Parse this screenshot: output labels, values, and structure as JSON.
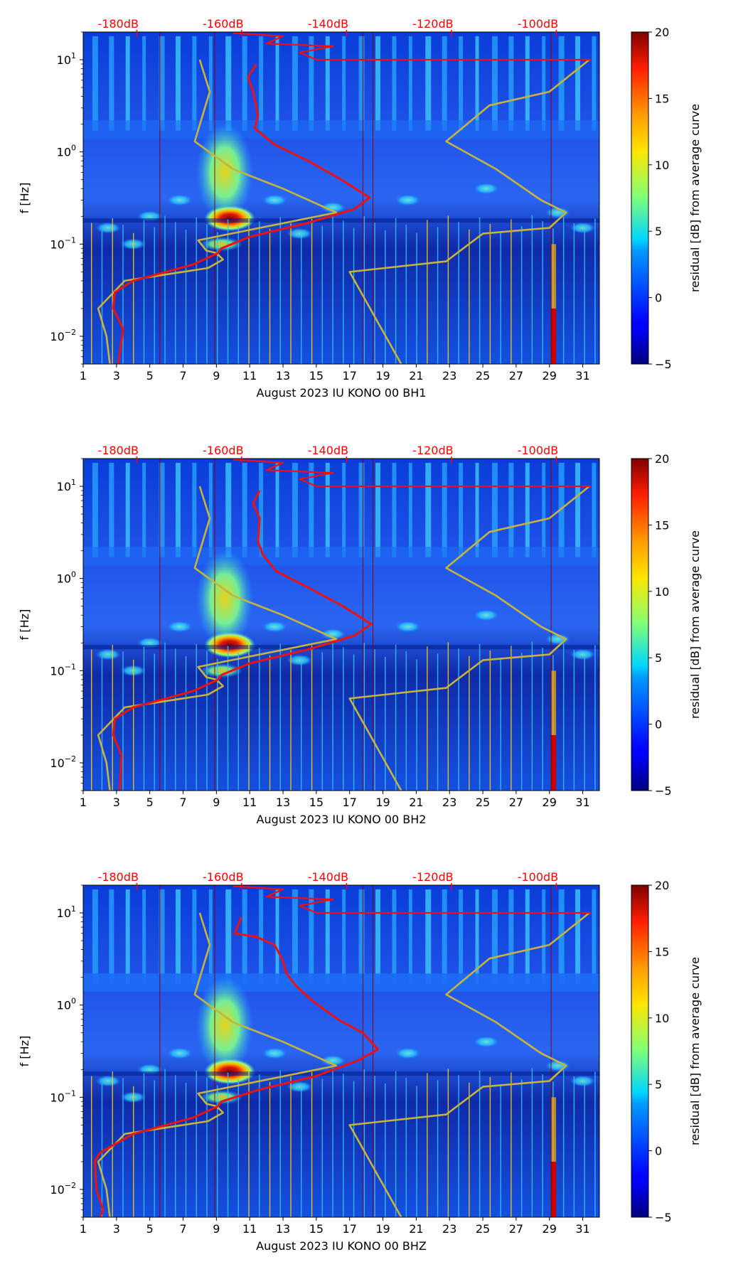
{
  "figure": {
    "colors": {
      "top_scale": "#ff0000",
      "noise_model": "#c8b43a",
      "psd_curve": "#ee1111",
      "axis": "#000000"
    }
  },
  "chart_data": [
    {
      "type": "heatmap",
      "title": "",
      "xlabel": "August 2023 IU KONO 00 BH1",
      "ylabel": "f [Hz]",
      "x_ticks": [
        "1",
        "3",
        "5",
        "7",
        "9",
        "11",
        "13",
        "15",
        "17",
        "19",
        "21",
        "23",
        "25",
        "27",
        "29",
        "31"
      ],
      "x_range": [
        1,
        32
      ],
      "y_range": [
        0.005,
        20
      ],
      "y_scale": "log",
      "y_ticks": [
        {
          "label": "10",
          "exp": "1",
          "value": 10
        },
        {
          "label": "10",
          "exp": "0",
          "value": 1
        },
        {
          "label": "10",
          "exp": "−1",
          "value": 0.1
        },
        {
          "label": "10",
          "exp": "−2",
          "value": 0.01
        }
      ],
      "top_ticks": [
        {
          "label": "-180dB",
          "day": 4.3
        },
        {
          "label": "-160dB",
          "day": 10.6
        },
        {
          "label": "-140dB",
          "day": 16.9
        },
        {
          "label": "-120dB",
          "day": 23.2
        },
        {
          "label": "-100dB",
          "day": 29.5
        }
      ],
      "colorbar": {
        "label": "residual [dB] from average curve",
        "min": -5,
        "max": 20,
        "ticks": [
          "20",
          "15",
          "10",
          "5",
          "0",
          "−5"
        ],
        "tick_values": [
          20,
          15,
          10,
          5,
          0,
          -5
        ]
      },
      "series": [
        {
          "name": "noise model bounds",
          "points": [
            [
              8,
              10
            ],
            [
              8.6,
              4.5
            ],
            [
              7.7,
              1.3
            ],
            [
              10,
              0.65
            ],
            [
              13,
              0.4
            ],
            [
              16.2,
              0.22
            ],
            [
              7.9,
              0.11
            ],
            [
              8.4,
              0.085
            ],
            [
              9,
              0.08
            ],
            [
              9.4,
              0.068
            ],
            [
              8.5,
              0.055
            ],
            [
              3.5,
              0.04
            ],
            [
              1.9,
              0.02
            ],
            [
              2.4,
              0.01
            ],
            [
              2.6,
              0.005
            ]
          ]
        },
        {
          "name": "noise model upper",
          "points": [
            [
              20.1,
              0.005
            ],
            [
              17,
              0.05
            ],
            [
              22.8,
              0.065
            ],
            [
              25,
              0.13
            ],
            [
              29,
              0.15
            ],
            [
              30,
              0.22
            ],
            [
              28.5,
              0.3
            ],
            [
              25.8,
              0.65
            ],
            [
              22.8,
              1.3
            ],
            [
              25.4,
              3.2
            ],
            [
              29,
              4.5
            ],
            [
              31.4,
              10
            ]
          ]
        },
        {
          "name": "psd level",
          "points": [
            [
              31.5,
              10
            ],
            [
              15,
              10
            ],
            [
              14,
              12
            ],
            [
              16,
              14
            ],
            [
              12,
              15
            ],
            [
              13,
              18
            ],
            [
              10,
              19.5
            ]
          ]
        },
        {
          "name": "psd median",
          "points": [
            [
              11.4,
              9
            ],
            [
              10.9,
              6.5
            ],
            [
              11.2,
              4.5
            ],
            [
              11.5,
              2.5
            ],
            [
              11.3,
              1.8
            ],
            [
              12.5,
              1.2
            ],
            [
              14.5,
              0.8
            ],
            [
              16.5,
              0.5
            ],
            [
              18.2,
              0.32
            ],
            [
              17.3,
              0.24
            ],
            [
              14.5,
              0.17
            ],
            [
              11,
              0.12
            ],
            [
              9.3,
              0.09
            ],
            [
              9.1,
              0.08
            ],
            [
              7.6,
              0.06
            ],
            [
              4,
              0.04
            ],
            [
              2.9,
              0.03
            ],
            [
              2.8,
              0.02
            ],
            [
              3.4,
              0.012
            ],
            [
              3.1,
              0.005
            ]
          ]
        }
      ]
    },
    {
      "type": "heatmap",
      "title": "",
      "xlabel": "August 2023 IU KONO 00 BH2",
      "ylabel": "f [Hz]",
      "x_ticks": [
        "1",
        "3",
        "5",
        "7",
        "9",
        "11",
        "13",
        "15",
        "17",
        "19",
        "21",
        "23",
        "25",
        "27",
        "29",
        "31"
      ],
      "x_range": [
        1,
        32
      ],
      "y_range": [
        0.005,
        20
      ],
      "y_scale": "log",
      "y_ticks": [
        {
          "label": "10",
          "exp": "1",
          "value": 10
        },
        {
          "label": "10",
          "exp": "0",
          "value": 1
        },
        {
          "label": "10",
          "exp": "−1",
          "value": 0.1
        },
        {
          "label": "10",
          "exp": "−2",
          "value": 0.01
        }
      ],
      "top_ticks": [
        {
          "label": "-180dB",
          "day": 4.3
        },
        {
          "label": "-160dB",
          "day": 10.6
        },
        {
          "label": "-140dB",
          "day": 16.9
        },
        {
          "label": "-120dB",
          "day": 23.2
        },
        {
          "label": "-100dB",
          "day": 29.5
        }
      ],
      "colorbar": {
        "label": "residual [dB] from average curve",
        "min": -5,
        "max": 20,
        "ticks": [
          "20",
          "15",
          "10",
          "5",
          "0",
          "−5"
        ],
        "tick_values": [
          20,
          15,
          10,
          5,
          0,
          -5
        ]
      },
      "series": [
        {
          "name": "noise model bounds",
          "points": [
            [
              8,
              10
            ],
            [
              8.6,
              4.5
            ],
            [
              7.7,
              1.3
            ],
            [
              10,
              0.65
            ],
            [
              13,
              0.4
            ],
            [
              16.2,
              0.22
            ],
            [
              7.9,
              0.11
            ],
            [
              8.4,
              0.085
            ],
            [
              9,
              0.08
            ],
            [
              9.4,
              0.068
            ],
            [
              8.5,
              0.055
            ],
            [
              3.5,
              0.04
            ],
            [
              1.9,
              0.02
            ],
            [
              2.4,
              0.01
            ],
            [
              2.6,
              0.005
            ]
          ]
        },
        {
          "name": "noise model upper",
          "points": [
            [
              20.1,
              0.005
            ],
            [
              17,
              0.05
            ],
            [
              22.8,
              0.065
            ],
            [
              25,
              0.13
            ],
            [
              29,
              0.15
            ],
            [
              30,
              0.22
            ],
            [
              28.5,
              0.3
            ],
            [
              25.8,
              0.65
            ],
            [
              22.8,
              1.3
            ],
            [
              25.4,
              3.2
            ],
            [
              29,
              4.5
            ],
            [
              31.4,
              10
            ]
          ]
        },
        {
          "name": "psd level",
          "points": [
            [
              31.5,
              10
            ],
            [
              15,
              10
            ],
            [
              14,
              12
            ],
            [
              16,
              14
            ],
            [
              12,
              15
            ],
            [
              13,
              18
            ],
            [
              10,
              19.5
            ]
          ]
        },
        {
          "name": "psd median",
          "points": [
            [
              11.6,
              9
            ],
            [
              11.2,
              6.5
            ],
            [
              11.6,
              4.5
            ],
            [
              11.5,
              2.5
            ],
            [
              11.8,
              1.8
            ],
            [
              12.6,
              1.2
            ],
            [
              14.5,
              0.8
            ],
            [
              16.6,
              0.5
            ],
            [
              18.3,
              0.32
            ],
            [
              17.3,
              0.24
            ],
            [
              14.5,
              0.17
            ],
            [
              11,
              0.12
            ],
            [
              9.3,
              0.09
            ],
            [
              9.1,
              0.08
            ],
            [
              7.6,
              0.06
            ],
            [
              4,
              0.04
            ],
            [
              2.9,
              0.03
            ],
            [
              2.8,
              0.02
            ],
            [
              3.3,
              0.012
            ],
            [
              3.2,
              0.005
            ]
          ]
        }
      ]
    },
    {
      "type": "heatmap",
      "title": "",
      "xlabel": "August 2023 IU KONO 00 BHZ",
      "ylabel": "f [Hz]",
      "x_ticks": [
        "1",
        "3",
        "5",
        "7",
        "9",
        "11",
        "13",
        "15",
        "17",
        "19",
        "21",
        "23",
        "25",
        "27",
        "29",
        "31"
      ],
      "x_range": [
        1,
        32
      ],
      "y_range": [
        0.005,
        20
      ],
      "y_scale": "log",
      "y_ticks": [
        {
          "label": "10",
          "exp": "1",
          "value": 10
        },
        {
          "label": "10",
          "exp": "0",
          "value": 1
        },
        {
          "label": "10",
          "exp": "−1",
          "value": 0.1
        },
        {
          "label": "10",
          "exp": "−2",
          "value": 0.01
        }
      ],
      "top_ticks": [
        {
          "label": "-180dB",
          "day": 4.3
        },
        {
          "label": "-160dB",
          "day": 10.6
        },
        {
          "label": "-140dB",
          "day": 16.9
        },
        {
          "label": "-120dB",
          "day": 23.2
        },
        {
          "label": "-100dB",
          "day": 29.5
        }
      ],
      "colorbar": {
        "label": "residual [dB] from average curve",
        "min": -5,
        "max": 20,
        "ticks": [
          "20",
          "15",
          "10",
          "5",
          "0",
          "−5"
        ],
        "tick_values": [
          20,
          15,
          10,
          5,
          0,
          -5
        ]
      },
      "series": [
        {
          "name": "noise model bounds",
          "points": [
            [
              8,
              10
            ],
            [
              8.6,
              4.5
            ],
            [
              7.7,
              1.3
            ],
            [
              10,
              0.65
            ],
            [
              13,
              0.4
            ],
            [
              16.2,
              0.22
            ],
            [
              7.9,
              0.11
            ],
            [
              8.4,
              0.085
            ],
            [
              9,
              0.08
            ],
            [
              9.4,
              0.068
            ],
            [
              8.5,
              0.055
            ],
            [
              3.5,
              0.04
            ],
            [
              1.9,
              0.02
            ],
            [
              2.4,
              0.01
            ],
            [
              2.6,
              0.005
            ]
          ]
        },
        {
          "name": "noise model upper",
          "points": [
            [
              20.1,
              0.005
            ],
            [
              17,
              0.05
            ],
            [
              22.8,
              0.065
            ],
            [
              25,
              0.13
            ],
            [
              29,
              0.15
            ],
            [
              30,
              0.22
            ],
            [
              28.5,
              0.3
            ],
            [
              25.8,
              0.65
            ],
            [
              22.8,
              1.3
            ],
            [
              25.4,
              3.2
            ],
            [
              29,
              4.5
            ],
            [
              31.4,
              10
            ]
          ]
        },
        {
          "name": "psd level",
          "points": [
            [
              31.5,
              10
            ],
            [
              15,
              10
            ],
            [
              14,
              12
            ],
            [
              16,
              14
            ],
            [
              12,
              15
            ],
            [
              13,
              18
            ],
            [
              10,
              19.5
            ]
          ]
        },
        {
          "name": "psd median",
          "points": [
            [
              10.5,
              9
            ],
            [
              10.1,
              6
            ],
            [
              11.4,
              5.5
            ],
            [
              12.5,
              4.5
            ],
            [
              13,
              3
            ],
            [
              13.2,
              2.2
            ],
            [
              13.8,
              1.6
            ],
            [
              14.8,
              1.1
            ],
            [
              16.3,
              0.7
            ],
            [
              17.8,
              0.5
            ],
            [
              18.7,
              0.33
            ],
            [
              17.5,
              0.25
            ],
            [
              15,
              0.17
            ],
            [
              11.5,
              0.12
            ],
            [
              9.3,
              0.09
            ],
            [
              9.1,
              0.08
            ],
            [
              7.6,
              0.06
            ],
            [
              4,
              0.04
            ],
            [
              2,
              0.025
            ],
            [
              1.7,
              0.02
            ],
            [
              1.8,
              0.01
            ],
            [
              2.2,
              0.006
            ],
            [
              2,
              0.005
            ]
          ]
        }
      ]
    }
  ]
}
